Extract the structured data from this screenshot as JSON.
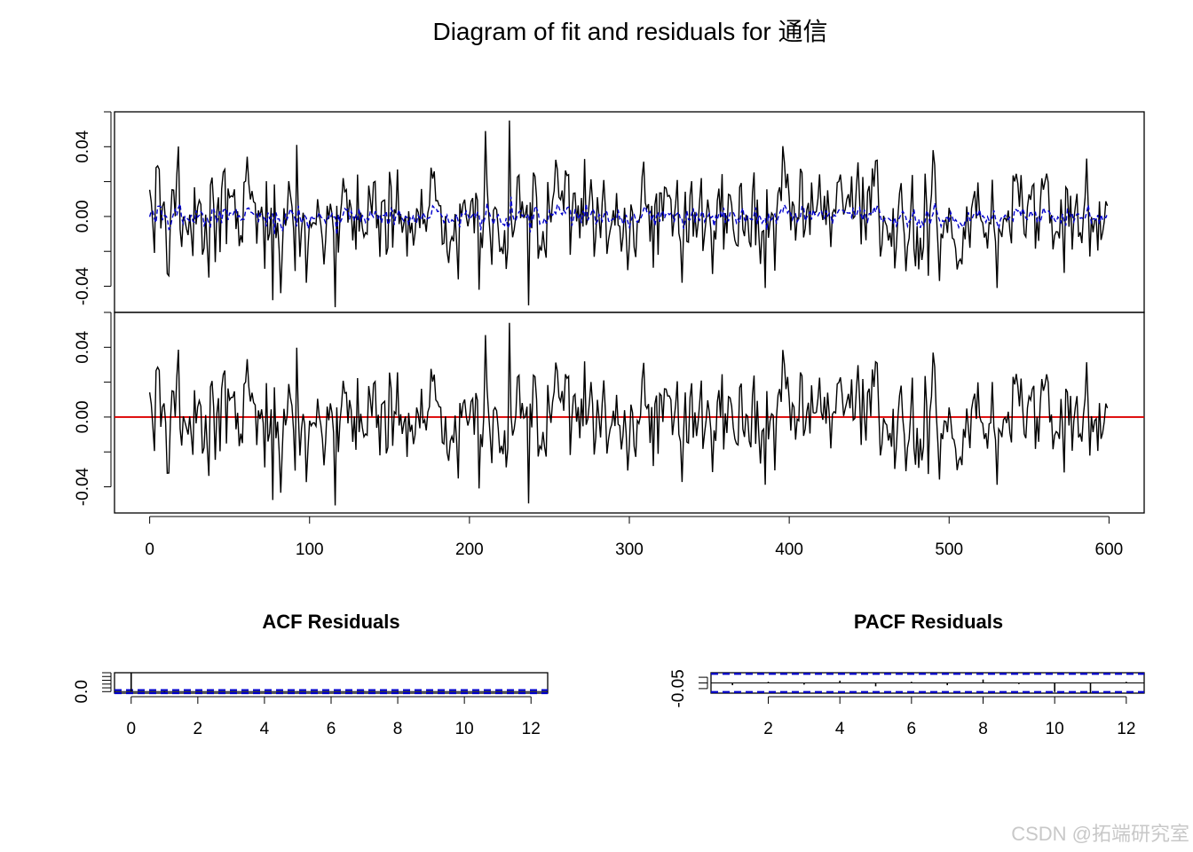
{
  "figure": {
    "title": "Diagram of fit and residuals for 通信",
    "watermark": "CSDN @拓端研究室"
  },
  "chart_data": [
    {
      "name": "fit-panel",
      "type": "line",
      "n_points": 600,
      "xlim": [
        -22,
        622
      ],
      "ylim": [
        -0.055,
        0.06
      ],
      "ytick_labels": [
        "-0.04",
        "0.00",
        "0.04"
      ],
      "yticks": [
        -0.04,
        -0.02,
        0.0,
        0.02,
        0.04,
        0.06
      ],
      "series": [
        {
          "role": "observed",
          "color": "#000000",
          "dash": "solid",
          "scale": 1.0
        },
        {
          "role": "fitted",
          "color": "#0000cc",
          "dash": "dashed",
          "scale": 0.18
        }
      ],
      "spikes": [
        [
          4,
          0.028
        ],
        [
          5,
          0.029
        ],
        [
          6,
          0.027
        ],
        [
          12,
          -0.034
        ],
        [
          37,
          -0.035
        ],
        [
          47,
          0.027
        ],
        [
          62,
          0.019
        ],
        [
          72,
          -0.03
        ],
        [
          77,
          -0.048
        ],
        [
          82,
          -0.044
        ],
        [
          92,
          0.041
        ],
        [
          98,
          -0.038
        ],
        [
          116,
          -0.052
        ],
        [
          121,
          0.022
        ],
        [
          130,
          0.024
        ],
        [
          155,
          0.027
        ],
        [
          161,
          -0.023
        ],
        [
          176,
          0.028
        ],
        [
          193,
          -0.036
        ],
        [
          206,
          -0.042
        ],
        [
          210,
          0.049
        ],
        [
          220,
          -0.018
        ],
        [
          225,
          0.055
        ],
        [
          237,
          -0.051
        ],
        [
          255,
          0.027
        ],
        [
          263,
          -0.022
        ],
        [
          272,
          0.033
        ],
        [
          318,
          -0.022
        ],
        [
          333,
          -0.038
        ],
        [
          345,
          0.022
        ],
        [
          385,
          -0.041
        ],
        [
          397,
          0.031
        ],
        [
          432,
          0.024
        ],
        [
          457,
          -0.023
        ],
        [
          487,
          -0.034
        ],
        [
          490,
          0.038
        ],
        [
          494,
          -0.037
        ],
        [
          530,
          -0.041
        ],
        [
          588,
          -0.023
        ]
      ]
    },
    {
      "name": "residual-panel",
      "type": "line",
      "n_points": 600,
      "xlim": [
        -22,
        622
      ],
      "ylim": [
        -0.055,
        0.06
      ],
      "xtick_labels": [
        "0",
        "100",
        "200",
        "300",
        "400",
        "500",
        "600"
      ],
      "xticks": [
        0,
        100,
        200,
        300,
        400,
        500,
        600
      ],
      "ytick_labels": [
        "-0.04",
        "0.00",
        "0.04"
      ],
      "yticks": [
        -0.04,
        -0.02,
        0.0,
        0.02,
        0.04,
        0.06
      ],
      "series": [
        {
          "role": "residuals",
          "color": "#000000",
          "dash": "solid",
          "scale": 0.97
        }
      ],
      "reference_line": {
        "y": 0.0,
        "color": "#dd0000"
      }
    },
    {
      "name": "acf-panel",
      "type": "bar",
      "title": "ACF Residuals",
      "x": [
        0,
        1,
        2,
        3,
        4,
        5,
        6,
        7,
        8,
        9,
        10,
        11,
        12
      ],
      "values": [
        1.0,
        -0.03,
        0.02,
        -0.01,
        0.02,
        -0.02,
        0.01,
        0.03,
        -0.02,
        0.01,
        -0.01,
        0.02,
        -0.01
      ],
      "xlim": [
        -0.5,
        12.5
      ],
      "ylim": [
        -0.08,
        1.0
      ],
      "xtick_labels": [
        "0",
        "2",
        "4",
        "6",
        "8",
        "10",
        "12"
      ],
      "xticks": [
        0,
        2,
        4,
        6,
        8,
        10,
        12
      ],
      "ytick_labels": [
        "0.0"
      ],
      "yticks": [
        0.0,
        0.2,
        0.4,
        0.6,
        0.8,
        1.0
      ],
      "conf_band": 0.08,
      "band_color": "#0000cc"
    },
    {
      "name": "pacf-panel",
      "type": "bar",
      "title": "PACF Residuals",
      "x": [
        1,
        2,
        3,
        4,
        5,
        6,
        7,
        8,
        9,
        10,
        11,
        12
      ],
      "values": [
        -0.02,
        0.01,
        -0.015,
        0.02,
        -0.03,
        0.01,
        -0.02,
        0.03,
        -0.01,
        -0.08,
        -0.09,
        0.01
      ],
      "xlim": [
        0.4,
        12.5
      ],
      "ylim": [
        -0.09,
        0.09
      ],
      "xtick_labels": [
        "2",
        "4",
        "6",
        "8",
        "10",
        "12"
      ],
      "xticks": [
        2,
        4,
        6,
        8,
        10,
        12
      ],
      "ytick_labels": [
        "-0.05"
      ],
      "yticks": [
        -0.05,
        0.0,
        0.05
      ],
      "conf_band": 0.08,
      "band_color": "#0000cc"
    }
  ]
}
